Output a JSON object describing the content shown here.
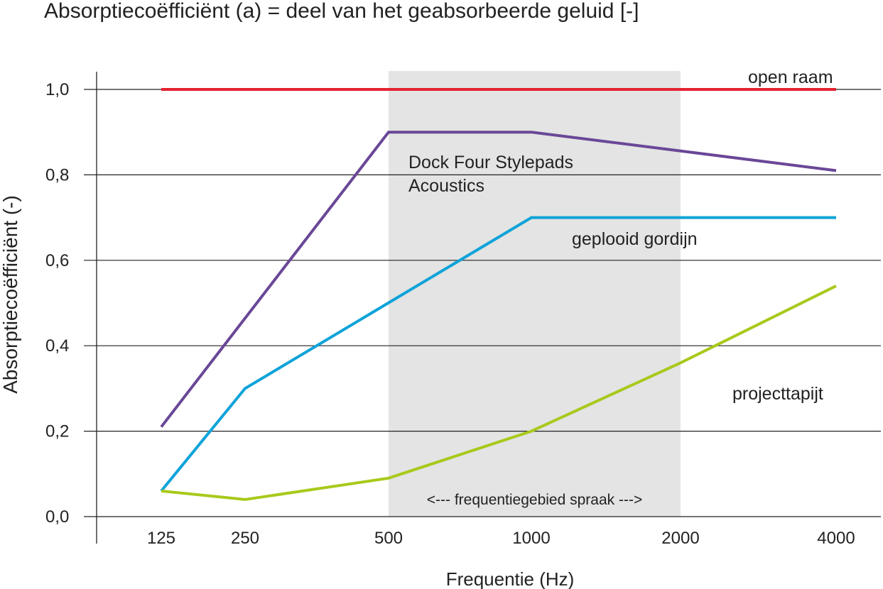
{
  "chart_data": {
    "type": "line",
    "title": "Absorptiecoëfficiënt (a) = deel van het geabsorbeerde geluid [-]",
    "xlabel": "Frequentie (Hz)",
    "ylabel": "Absorptiecoëfficiënt (-)",
    "x_scale": "log",
    "categories": [
      "125",
      "250",
      "500",
      "1000",
      "2000",
      "4000"
    ],
    "x_ticks": [
      125,
      250,
      500,
      1000,
      2000,
      4000
    ],
    "y_ticks": [
      0.0,
      0.2,
      0.4,
      0.6,
      0.8,
      1.0
    ],
    "y_tick_labels": [
      "0,0",
      "0,2",
      "0,4",
      "0,6",
      "0,8",
      "1,0"
    ],
    "ylim": [
      0.0,
      1.0
    ],
    "grid": "horizontal",
    "shaded_region": {
      "from": 500,
      "to": 2000,
      "label": "<--- frequentiegebied spraak --->",
      "color": "#e3e4e3"
    },
    "series": [
      {
        "name": "open raam",
        "color": "#e3232f",
        "x": [
          125,
          4000
        ],
        "values": [
          1.0,
          1.0
        ]
      },
      {
        "name": "Dock Four Stylepads Acoustics",
        "color": "#6a4797",
        "x": [
          125,
          500,
          1000,
          4000
        ],
        "values": [
          0.21,
          0.9,
          0.9,
          0.81
        ]
      },
      {
        "name": "geplooid gordijn",
        "color": "#0ea3d9",
        "x": [
          125,
          250,
          1000,
          4000
        ],
        "values": [
          0.06,
          0.3,
          0.7,
          0.7
        ]
      },
      {
        "name": "projecttapijt",
        "color": "#a8c91b",
        "x": [
          125,
          250,
          500,
          1000,
          2000,
          4000
        ],
        "values": [
          0.06,
          0.04,
          0.09,
          0.2,
          0.36,
          0.54
        ]
      }
    ]
  }
}
